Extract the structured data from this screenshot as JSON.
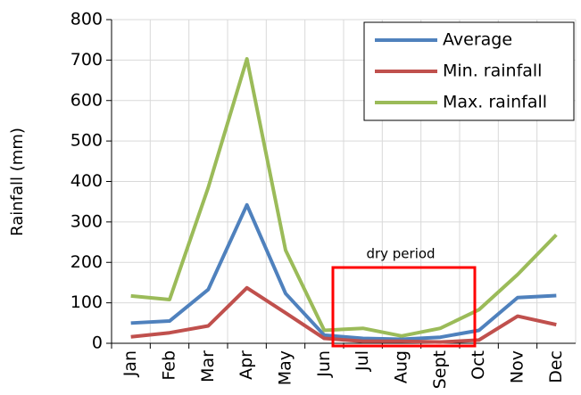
{
  "chart_data": {
    "type": "line",
    "y_label": "Rainfall (mm)",
    "annotation": "dry period",
    "categories": [
      "Jan",
      "Feb",
      "Mar",
      "Apr",
      "May",
      "Jun",
      "Jul",
      "Aug",
      "Sept",
      "Oct",
      "Nov",
      "Dec"
    ],
    "series": [
      {
        "name": "Average",
        "color": "#4f81bd",
        "values": [
          50,
          55,
          133,
          342,
          123,
          20,
          12,
          10,
          15,
          32,
          113,
          118
        ]
      },
      {
        "name": "Min. rainfall",
        "color": "#c0504d",
        "values": [
          16,
          26,
          43,
          137,
          75,
          12,
          5,
          5,
          3,
          8,
          67,
          46
        ]
      },
      {
        "name": "Max. rainfall",
        "color": "#9bbb59",
        "values": [
          117,
          108,
          385,
          703,
          230,
          32,
          37,
          18,
          37,
          83,
          170,
          268
        ]
      }
    ],
    "ylim": [
      0,
      800
    ],
    "yticks": [
      0,
      100,
      200,
      300,
      400,
      500,
      600,
      700,
      800
    ],
    "grid": true,
    "legend": "upper right"
  }
}
